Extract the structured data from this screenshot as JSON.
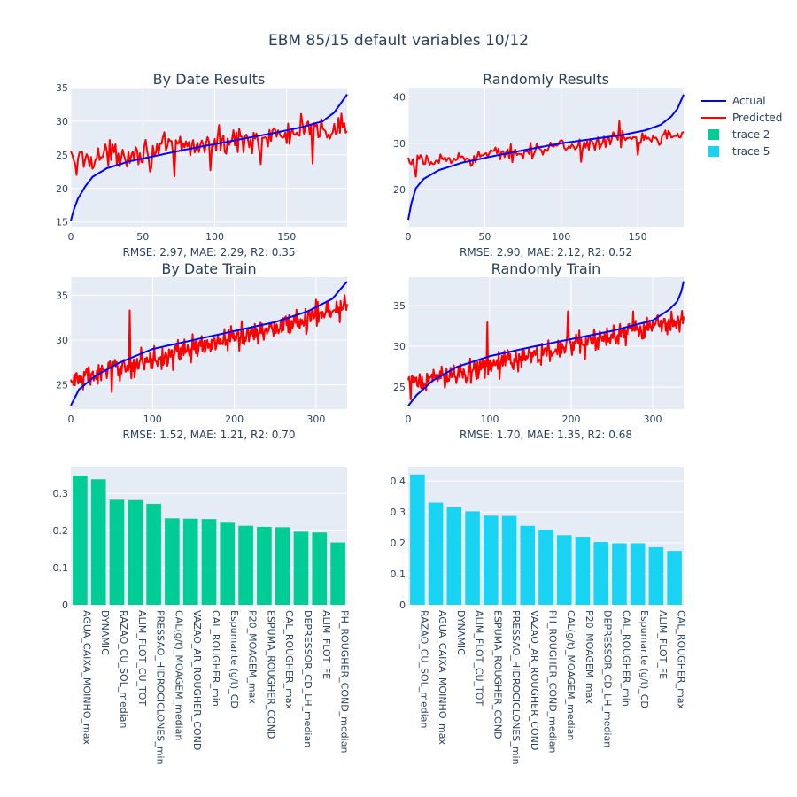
{
  "figure": {
    "title": "EBM 85/15 default variables 10/12",
    "background": "#ffffff",
    "plot_background": "#e5ecf6",
    "grid_color": "#ffffff",
    "text_color": "#2a3f5f"
  },
  "legend": {
    "placement": "top-right",
    "items": [
      {
        "label": "Actual",
        "color": "#0000ff",
        "kind": "line"
      },
      {
        "label": "Predicted",
        "color": "#ff0000",
        "kind": "line"
      },
      {
        "label": "trace 2",
        "color": "#00cc96",
        "kind": "square"
      },
      {
        "label": "trace 5",
        "color": "#19d3f3",
        "kind": "square"
      }
    ]
  },
  "chart_data": [
    {
      "id": "p1",
      "type": "line",
      "title": "By Date Results",
      "annotation": "RMSE: 2.97, MAE: 2.29, R2: 0.35",
      "xlim": [
        0,
        192
      ],
      "ylim": [
        14.3,
        35
      ],
      "xticks": [
        0,
        50,
        100,
        150
      ],
      "yticks": [
        15,
        20,
        25,
        30,
        35
      ],
      "grid": true,
      "n": 193,
      "series": [
        {
          "name": "Actual",
          "color": "#0000ff",
          "curve": [
            [
              0,
              15.2
            ],
            [
              2,
              16.8
            ],
            [
              5,
              18.5
            ],
            [
              10,
              20.3
            ],
            [
              15,
              21.7
            ],
            [
              25,
              23
            ],
            [
              40,
              24
            ],
            [
              60,
              24.9
            ],
            [
              80,
              25.8
            ],
            [
              100,
              26.6
            ],
            [
              120,
              27.4
            ],
            [
              140,
              28.2
            ],
            [
              160,
              29.1
            ],
            [
              175,
              30
            ],
            [
              183,
              31.3
            ],
            [
              188,
              32.8
            ],
            [
              192,
              34
            ]
          ]
        },
        {
          "name": "Predicted",
          "color": "#ff0000",
          "trend": [
            [
              0,
              24.3
            ],
            [
              192,
              29
            ]
          ],
          "noise": 1.9,
          "spikes": [
            [
              4,
              22
            ],
            [
              55,
              22.5
            ],
            [
              72,
              21.8
            ],
            [
              97,
              22.7
            ],
            [
              132,
              23.6
            ],
            [
              168,
              23.7
            ],
            [
              160,
              31.1
            ],
            [
              186,
              30.5
            ]
          ]
        }
      ]
    },
    {
      "id": "p2",
      "type": "line",
      "title": "Randomly Results",
      "annotation": "RMSE: 2.90, MAE: 2.12, R2: 0.52",
      "xlim": [
        0,
        180
      ],
      "ylim": [
        12,
        42
      ],
      "xticks": [
        0,
        50,
        100,
        150
      ],
      "yticks": [
        20,
        30,
        40
      ],
      "grid": true,
      "n": 181,
      "series": [
        {
          "name": "Actual",
          "color": "#0000ff",
          "curve": [
            [
              0,
              13.5
            ],
            [
              2,
              17
            ],
            [
              5,
              20.3
            ],
            [
              10,
              22.3
            ],
            [
              20,
              24.2
            ],
            [
              35,
              25.8
            ],
            [
              55,
              27.2
            ],
            [
              80,
              28.8
            ],
            [
              100,
              30
            ],
            [
              120,
              30.9
            ],
            [
              140,
              31.8
            ],
            [
              155,
              32.8
            ],
            [
              165,
              34
            ],
            [
              172,
              35.8
            ],
            [
              176,
              37.5
            ],
            [
              178,
              39
            ],
            [
              180,
              40.5
            ]
          ]
        },
        {
          "name": "Predicted",
          "color": "#ff0000",
          "trend": [
            [
              0,
              25.5
            ],
            [
              180,
              32.3
            ]
          ],
          "noise": 1.6,
          "spikes": [
            [
              5,
              22.8
            ],
            [
              60,
              26.5
            ],
            [
              113,
              26
            ],
            [
              150,
              27.5
            ],
            [
              138,
              34.8
            ]
          ]
        }
      ]
    },
    {
      "id": "p3",
      "type": "line",
      "title": "By Date Train",
      "annotation": "RMSE: 1.52, MAE: 1.21, R2: 0.70",
      "xlim": [
        0,
        338
      ],
      "ylim": [
        22.3,
        37
      ],
      "xticks": [
        0,
        100,
        200,
        300
      ],
      "yticks": [
        25,
        30,
        35
      ],
      "grid": true,
      "n": 339,
      "series": [
        {
          "name": "Actual",
          "color": "#0000ff",
          "curve": [
            [
              0,
              22.7
            ],
            [
              10,
              24.5
            ],
            [
              30,
              26
            ],
            [
              60,
              27.5
            ],
            [
              100,
              29
            ],
            [
              150,
              30
            ],
            [
              200,
              31
            ],
            [
              250,
              32
            ],
            [
              290,
              33.2
            ],
            [
              320,
              34.6
            ],
            [
              333,
              36
            ],
            [
              338,
              36.5
            ]
          ]
        },
        {
          "name": "Predicted",
          "color": "#ff0000",
          "trend": [
            [
              0,
              25.4
            ],
            [
              338,
              33.6
            ]
          ],
          "noise": 1.3,
          "spikes": [
            [
              72,
              33.3
            ],
            [
              50,
              24.2
            ],
            [
              300,
              34.5
            ],
            [
              325,
              34.3
            ],
            [
              335,
              35
            ]
          ]
        }
      ]
    },
    {
      "id": "p4",
      "type": "line",
      "title": "Randomly Train",
      "annotation": "RMSE: 1.70, MAE: 1.35, R2: 0.68",
      "xlim": [
        0,
        338
      ],
      "ylim": [
        22.3,
        38.5
      ],
      "xticks": [
        0,
        100,
        200,
        300
      ],
      "yticks": [
        25,
        30,
        35
      ],
      "grid": true,
      "n": 339,
      "series": [
        {
          "name": "Actual",
          "color": "#0000ff",
          "curve": [
            [
              0,
              22.7
            ],
            [
              10,
              24
            ],
            [
              30,
              25.8
            ],
            [
              60,
              27.5
            ],
            [
              100,
              28.8
            ],
            [
              150,
              29.9
            ],
            [
              200,
              30.9
            ],
            [
              250,
              31.9
            ],
            [
              300,
              33.2
            ],
            [
              320,
              34.5
            ],
            [
              330,
              35.5
            ],
            [
              335,
              36.7
            ],
            [
              338,
              38
            ]
          ]
        },
        {
          "name": "Predicted",
          "color": "#ff0000",
          "trend": [
            [
              0,
              25.3
            ],
            [
              338,
              33.3
            ]
          ],
          "noise": 1.4,
          "spikes": [
            [
              97,
              33
            ],
            [
              196,
              34.3
            ],
            [
              276,
              34.3
            ],
            [
              112,
              26
            ],
            [
              3,
              23.5
            ]
          ]
        }
      ]
    },
    {
      "id": "p5",
      "type": "bar",
      "name": "trace 2",
      "color": "#00cc96",
      "ylim": [
        0,
        0.372
      ],
      "yticks": [
        0,
        0.1,
        0.2,
        0.3
      ],
      "ytick_labels": [
        "0",
        "0.1",
        "0.2",
        "0.3"
      ],
      "grid": true,
      "categories": [
        "AGUA_CAIXA_MOINHO_max",
        "DYNAMIC",
        "RAZAO_CU_SOL_median",
        "ALIM_FLOT_CU_TOT",
        "PRESSAO_HIDROCICLONES_min",
        "CAL(g/t)_MOAGEM_median",
        "VAZAO_AR_ROUGHER_COND",
        "CAL_ROUGHER_min",
        "Espumante (g/t)_CD",
        "P20_MOAGEM_max",
        "ESPUMA_ROUGHER_COND",
        "CAL_ROUGHER_max",
        "DEPRESSOR_CD_LH_median",
        "ALIM_FLOT_FE",
        "PH_ROUGHER_COND_median"
      ],
      "values": [
        0.348,
        0.338,
        0.283,
        0.282,
        0.272,
        0.233,
        0.232,
        0.231,
        0.221,
        0.213,
        0.21,
        0.209,
        0.197,
        0.195,
        0.168
      ]
    },
    {
      "id": "p6",
      "type": "bar",
      "name": "trace 5",
      "color": "#19d3f3",
      "ylim": [
        0,
        0.446
      ],
      "yticks": [
        0,
        0.1,
        0.2,
        0.3,
        0.4
      ],
      "ytick_labels": [
        "0",
        "0.1",
        "0.2",
        "0.3",
        "0.4"
      ],
      "grid": true,
      "categories": [
        "RAZAO_CU_SOL_median",
        "AGUA_CAIXA_MOINHO_max",
        "DYNAMIC",
        "ALIM_FLOT_CU_TOT",
        "ESPUMA_ROUGHER_COND",
        "PRESSAO_HIDROCICLONES_min",
        "VAZAO_AR_ROUGHER_COND",
        "PH_ROUGHER_COND_median",
        "CAL(g/t)_MOAGEM_median",
        "P20_MOAGEM_max",
        "DEPRESSOR_CD_LH_median",
        "CAL_ROUGHER_min",
        "Espumante (g/t)_CD",
        "ALIM_FLOT_FE",
        "CAL_ROUGHER_max"
      ],
      "values": [
        0.421,
        0.33,
        0.317,
        0.302,
        0.288,
        0.287,
        0.255,
        0.242,
        0.225,
        0.22,
        0.203,
        0.199,
        0.199,
        0.186,
        0.174
      ]
    }
  ]
}
